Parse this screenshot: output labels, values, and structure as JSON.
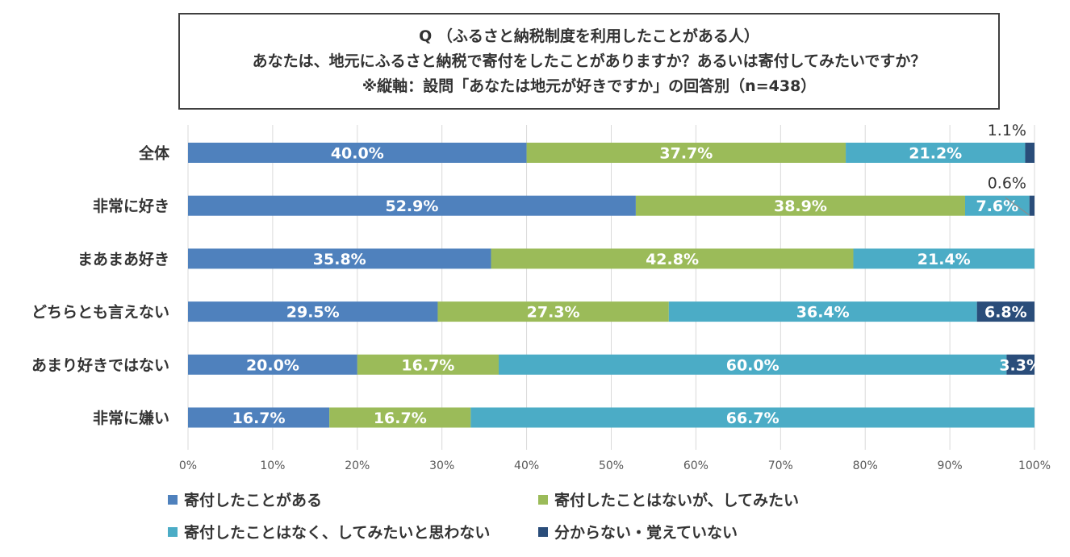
{
  "chart_data": {
    "type": "bar",
    "orientation": "horizontal",
    "stacked": true,
    "title_lines": [
      "Q （ふるさと納税制度を利用したことがある人）",
      "あなたは、地元にふるさと納税で寄付をしたことがありますか？あるいは寄付してみたいですか？",
      "※縦軸：設問「あなたは地元が好きですか」の回答別（n=438）"
    ],
    "categories": [
      "全体",
      "非常に好き",
      "まあまあ好き",
      "どちらとも言えない",
      "あまり好きではない",
      "非常に嫌い"
    ],
    "series": [
      {
        "name": "寄付したことがある",
        "color": "#4f81bd",
        "values": [
          40.0,
          52.9,
          35.8,
          29.5,
          20.0,
          16.7
        ],
        "labels": [
          "40.0%",
          "52.9%",
          "35.8%",
          "29.5%",
          "20.0%",
          "16.7%"
        ]
      },
      {
        "name": "寄付したことはないが、してみたい",
        "color": "#9bbb59",
        "values": [
          37.7,
          38.9,
          42.8,
          27.3,
          16.7,
          16.7
        ],
        "labels": [
          "37.7%",
          "38.9%",
          "42.8%",
          "27.3%",
          "16.7%",
          "16.7%"
        ]
      },
      {
        "name": "寄付したことはなく、してみたいと思わない",
        "color": "#4bacc6",
        "values": [
          21.2,
          7.6,
          21.4,
          36.4,
          60.0,
          66.7
        ],
        "labels": [
          "21.2%",
          "7.6%",
          "21.4%",
          "36.4%",
          "60.0%",
          "66.7%"
        ]
      },
      {
        "name": "分からない・覚えていない",
        "color": "#2a4d7a",
        "values": [
          1.1,
          0.6,
          0.0,
          6.8,
          3.3,
          0.0
        ],
        "labels": [
          "1.1%",
          "0.6%",
          "",
          "6.8%",
          "3.3%",
          ""
        ]
      }
    ],
    "xlim": [
      0,
      100
    ],
    "xticks": [
      "0%",
      "10%",
      "20%",
      "30%",
      "40%",
      "50%",
      "60%",
      "70%",
      "80%",
      "90%",
      "100%"
    ],
    "grid": true,
    "legend_position": "bottom"
  }
}
